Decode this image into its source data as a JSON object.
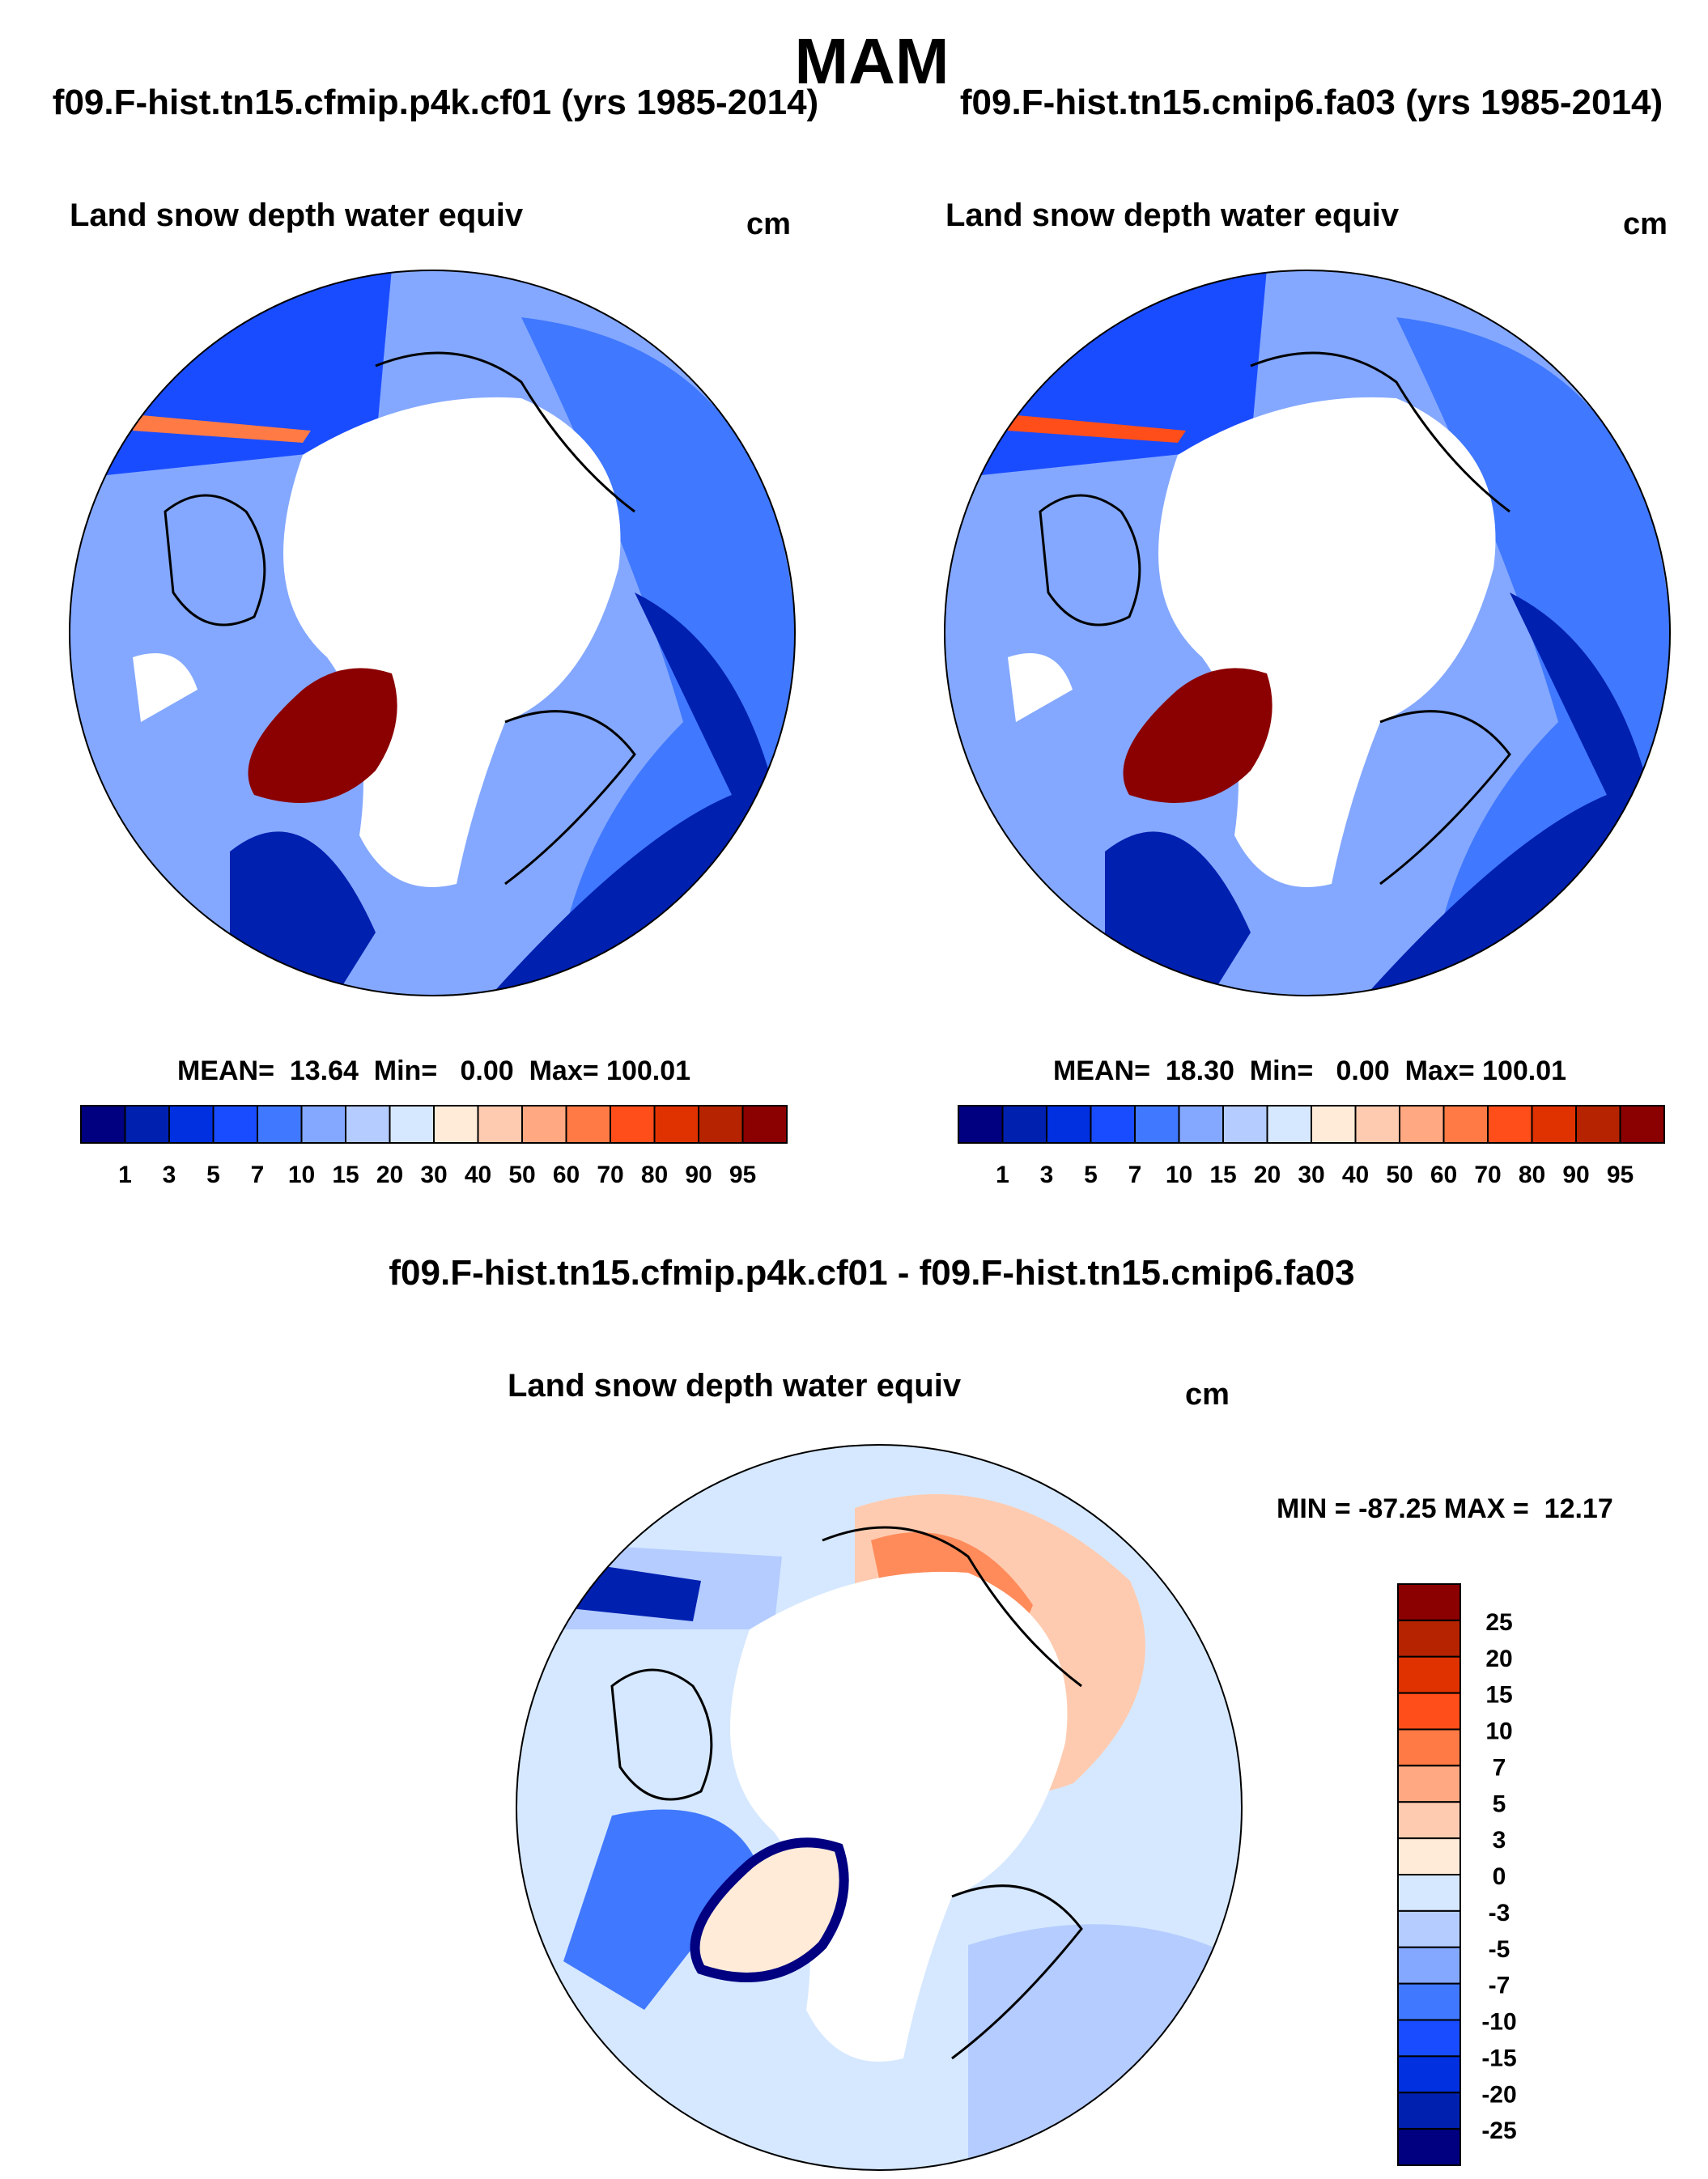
{
  "title": "MAM",
  "panels": [
    {
      "subtitle": "f09.F-hist.tn15.cfmip.p4k.cf01 (yrs 1985-2014)",
      "variable": "Land snow depth water equiv",
      "units": "cm",
      "stats": "MEAN=  13.64  Min=   0.00  Max= 100.01"
    },
    {
      "subtitle": "f09.F-hist.tn15.cmip6.fa03 (yrs 1985-2014)",
      "variable": "Land snow depth water equiv",
      "units": "cm",
      "stats": "MEAN=  18.30  Min=   0.00  Max= 100.01"
    },
    {
      "subtitle": "f09.F-hist.tn15.cfmip.p4k.cf01 - f09.F-hist.tn15.cmip6.fa03",
      "variable": "Land snow depth water equiv",
      "units": "cm",
      "stats": "MIN = -87.25 MAX =  12.17"
    }
  ],
  "chart_data": [
    {
      "type": "heatmap",
      "projection": "north-polar-stereographic",
      "title": "Land snow depth water equiv",
      "mean": 13.64,
      "min": 0.0,
      "max": 100.01,
      "levels": [
        "1",
        "3",
        "5",
        "7",
        "10",
        "15",
        "20",
        "30",
        "40",
        "50",
        "60",
        "70",
        "80",
        "90",
        "95"
      ],
      "colors": [
        "#000080",
        "#0020b0",
        "#0030e0",
        "#1a4cff",
        "#4078ff",
        "#84a8ff",
        "#b4ccff",
        "#d6e8ff",
        "#ffebd8",
        "#ffcbb0",
        "#ffa882",
        "#ff7a45",
        "#ff4e1a",
        "#e03200",
        "#b52300",
        "#8b0000"
      ],
      "legend": "bottom"
    },
    {
      "type": "heatmap",
      "projection": "north-polar-stereographic",
      "title": "Land snow depth water equiv",
      "mean": 18.3,
      "min": 0.0,
      "max": 100.01,
      "levels": [
        "1",
        "3",
        "5",
        "7",
        "10",
        "15",
        "20",
        "30",
        "40",
        "50",
        "60",
        "70",
        "80",
        "90",
        "95"
      ],
      "colors": [
        "#000080",
        "#0020b0",
        "#0030e0",
        "#1a4cff",
        "#4078ff",
        "#84a8ff",
        "#b4ccff",
        "#d6e8ff",
        "#ffebd8",
        "#ffcbb0",
        "#ffa882",
        "#ff7a45",
        "#ff4e1a",
        "#e03200",
        "#b52300",
        "#8b0000"
      ],
      "legend": "bottom"
    },
    {
      "type": "heatmap",
      "projection": "north-polar-stereographic",
      "title": "Land snow depth water equiv",
      "min": -87.25,
      "max": 12.17,
      "levels": [
        "25",
        "20",
        "15",
        "10",
        "7",
        "5",
        "3",
        "0",
        "-3",
        "-5",
        "-7",
        "-10",
        "-15",
        "-20",
        "-25"
      ],
      "colors": [
        "#8b0000",
        "#b52300",
        "#e03200",
        "#ff4e1a",
        "#ff7a45",
        "#ffa882",
        "#ffcbb0",
        "#ffebd8",
        "#d6e8ff",
        "#b4ccff",
        "#84a8ff",
        "#4078ff",
        "#1a4cff",
        "#0030e0",
        "#0020b0",
        "#000080"
      ],
      "legend": "right"
    }
  ]
}
